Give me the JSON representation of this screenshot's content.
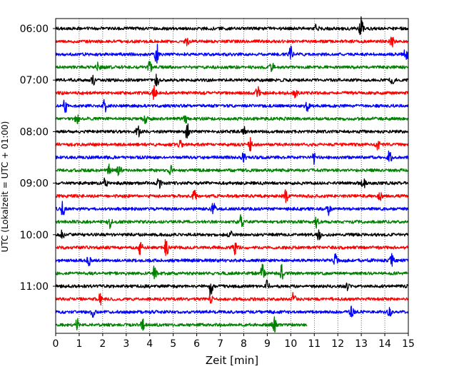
{
  "chart_data": {
    "type": "line",
    "title": "",
    "xlabel": "Zeit  [min]",
    "ylabel": "UTC (Lokalzeit = UTC + 01:00)",
    "xlim": [
      0,
      15
    ],
    "x_ticks": [
      "0",
      "1",
      "2",
      "3",
      "4",
      "5",
      "6",
      "7",
      "8",
      "9",
      "10",
      "11",
      "12",
      "13",
      "14",
      "15"
    ],
    "y_ticks": [
      {
        "label": "06:00",
        "row": 0
      },
      {
        "label": "07:00",
        "row": 4
      },
      {
        "label": "08:00",
        "row": 8
      },
      {
        "label": "09:00",
        "row": 12
      },
      {
        "label": "10:00",
        "row": 16
      },
      {
        "label": "11:00",
        "row": 20
      }
    ],
    "grid": "vertical dotted at each minute",
    "rows_per_hour": 4,
    "minutes_per_row": 15,
    "color_cycle": [
      "#000000",
      "#ff0000",
      "#0000ff",
      "#008000"
    ],
    "rows": [
      {
        "start": "06:00",
        "color": "#000000",
        "end_min": 15,
        "events": [
          {
            "t": 11.1,
            "a": 1.2
          },
          {
            "t": 13.0,
            "a": 2.4
          }
        ]
      },
      {
        "start": "06:15",
        "color": "#ff0000",
        "end_min": 15,
        "events": [
          {
            "t": 5.6,
            "a": 1.1
          },
          {
            "t": 14.3,
            "a": 1.6
          }
        ]
      },
      {
        "start": "06:30",
        "color": "#0000ff",
        "end_min": 15,
        "events": [
          {
            "t": 4.3,
            "a": 2.0
          },
          {
            "t": 10.0,
            "a": 1.4
          },
          {
            "t": 14.9,
            "a": 1.4
          }
        ]
      },
      {
        "start": "06:45",
        "color": "#008000",
        "end_min": 15,
        "events": [
          {
            "t": 1.8,
            "a": 1.0
          },
          {
            "t": 4.0,
            "a": 1.1
          },
          {
            "t": 9.2,
            "a": 1.1
          }
        ]
      },
      {
        "start": "07:00",
        "color": "#000000",
        "end_min": 15,
        "events": [
          {
            "t": 1.6,
            "a": 1.0
          },
          {
            "t": 4.3,
            "a": 1.1
          },
          {
            "t": 14.3,
            "a": 1.0
          }
        ]
      },
      {
        "start": "07:15",
        "color": "#ff0000",
        "end_min": 15,
        "events": [
          {
            "t": 4.2,
            "a": 1.5
          },
          {
            "t": 8.6,
            "a": 1.5
          },
          {
            "t": 10.2,
            "a": 1.1
          }
        ]
      },
      {
        "start": "07:30",
        "color": "#0000ff",
        "end_min": 15,
        "events": [
          {
            "t": 0.4,
            "a": 1.5
          },
          {
            "t": 2.1,
            "a": 1.6
          },
          {
            "t": 10.7,
            "a": 1.1
          }
        ]
      },
      {
        "start": "07:45",
        "color": "#008000",
        "end_min": 15,
        "events": [
          {
            "t": 0.9,
            "a": 1.0
          },
          {
            "t": 3.8,
            "a": 1.0
          },
          {
            "t": 5.5,
            "a": 1.0
          }
        ]
      },
      {
        "start": "08:00",
        "color": "#000000",
        "end_min": 15,
        "events": [
          {
            "t": 3.5,
            "a": 1.0
          },
          {
            "t": 5.6,
            "a": 1.6
          },
          {
            "t": 8.0,
            "a": 1.0
          }
        ]
      },
      {
        "start": "08:15",
        "color": "#ff0000",
        "end_min": 15,
        "events": [
          {
            "t": 5.3,
            "a": 1.2
          },
          {
            "t": 8.3,
            "a": 1.3
          },
          {
            "t": 13.7,
            "a": 1.0
          }
        ]
      },
      {
        "start": "08:30",
        "color": "#0000ff",
        "end_min": 15,
        "events": [
          {
            "t": 8.0,
            "a": 1.1
          },
          {
            "t": 11.0,
            "a": 1.2
          },
          {
            "t": 14.2,
            "a": 1.3
          }
        ]
      },
      {
        "start": "08:45",
        "color": "#008000",
        "end_min": 15,
        "events": [
          {
            "t": 2.3,
            "a": 1.3
          },
          {
            "t": 2.7,
            "a": 1.2
          },
          {
            "t": 4.9,
            "a": 1.0
          }
        ]
      },
      {
        "start": "09:00",
        "color": "#000000",
        "end_min": 15,
        "events": [
          {
            "t": 2.1,
            "a": 1.0
          },
          {
            "t": 4.4,
            "a": 1.0
          },
          {
            "t": 13.1,
            "a": 1.0
          }
        ]
      },
      {
        "start": "09:15",
        "color": "#ff0000",
        "end_min": 15,
        "events": [
          {
            "t": 5.9,
            "a": 1.0
          },
          {
            "t": 9.8,
            "a": 1.2
          },
          {
            "t": 13.8,
            "a": 1.0
          }
        ]
      },
      {
        "start": "09:30",
        "color": "#0000ff",
        "end_min": 15,
        "events": [
          {
            "t": 0.3,
            "a": 1.3
          },
          {
            "t": 6.7,
            "a": 1.3
          },
          {
            "t": 11.6,
            "a": 1.0
          }
        ]
      },
      {
        "start": "09:45",
        "color": "#008000",
        "end_min": 15,
        "events": [
          {
            "t": 2.3,
            "a": 1.2
          },
          {
            "t": 7.9,
            "a": 1.4
          },
          {
            "t": 11.1,
            "a": 1.0
          }
        ]
      },
      {
        "start": "10:00",
        "color": "#000000",
        "end_min": 15,
        "events": [
          {
            "t": 0.3,
            "a": 1.0
          },
          {
            "t": 7.4,
            "a": 1.1
          },
          {
            "t": 11.2,
            "a": 1.0
          }
        ]
      },
      {
        "start": "10:15",
        "color": "#ff0000",
        "end_min": 15,
        "events": [
          {
            "t": 3.6,
            "a": 1.5
          },
          {
            "t": 4.7,
            "a": 2.4
          },
          {
            "t": 7.6,
            "a": 1.6
          }
        ]
      },
      {
        "start": "10:30",
        "color": "#0000ff",
        "end_min": 15,
        "events": [
          {
            "t": 1.4,
            "a": 1.1
          },
          {
            "t": 11.9,
            "a": 1.1
          },
          {
            "t": 14.3,
            "a": 1.1
          }
        ]
      },
      {
        "start": "10:45",
        "color": "#008000",
        "end_min": 15,
        "events": [
          {
            "t": 4.2,
            "a": 1.5
          },
          {
            "t": 8.8,
            "a": 1.8
          },
          {
            "t": 9.6,
            "a": 1.6
          }
        ]
      },
      {
        "start": "11:00",
        "color": "#000000",
        "end_min": 15,
        "events": [
          {
            "t": 6.6,
            "a": 2.0
          },
          {
            "t": 9.0,
            "a": 1.2
          },
          {
            "t": 12.4,
            "a": 1.0
          }
        ]
      },
      {
        "start": "11:15",
        "color": "#ff0000",
        "end_min": 15,
        "events": [
          {
            "t": 1.9,
            "a": 1.0
          },
          {
            "t": 6.6,
            "a": 1.0
          },
          {
            "t": 10.1,
            "a": 1.5
          }
        ]
      },
      {
        "start": "11:30",
        "color": "#0000ff",
        "end_min": 15,
        "events": [
          {
            "t": 1.6,
            "a": 1.1
          },
          {
            "t": 12.6,
            "a": 1.4
          },
          {
            "t": 14.2,
            "a": 1.0
          }
        ]
      },
      {
        "start": "11:45",
        "color": "#008000",
        "end_min": 10.7,
        "events": [
          {
            "t": 0.9,
            "a": 1.2
          },
          {
            "t": 3.7,
            "a": 1.1
          },
          {
            "t": 9.3,
            "a": 1.4
          }
        ]
      }
    ]
  }
}
